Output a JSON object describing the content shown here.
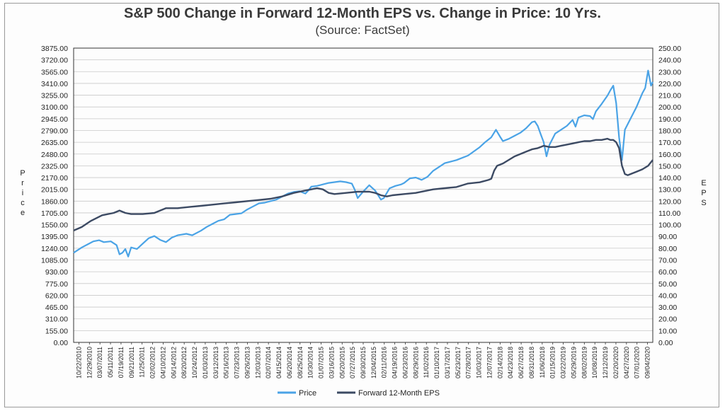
{
  "chart_data": {
    "type": "line",
    "title": "S&P 500 Change in Forward 12-Month EPS vs. Change in Price: 10 Yrs.",
    "subtitle": "(Source: FactSet)",
    "ylabel_left": "Price",
    "ylabel_right": "EPS",
    "ylim_left": [
      0,
      3875
    ],
    "ylim_right": [
      0,
      250
    ],
    "yticks_left": [
      "0.00",
      "155.00",
      "310.00",
      "465.00",
      "620.00",
      "775.00",
      "930.00",
      "1085.00",
      "1240.00",
      "1395.00",
      "1550.00",
      "1705.00",
      "1860.00",
      "2015.00",
      "2170.00",
      "2325.00",
      "2480.00",
      "2635.00",
      "2790.00",
      "2945.00",
      "3100.00",
      "3255.00",
      "3410.00",
      "3565.00",
      "3720.00",
      "3875.00"
    ],
    "yticks_right": [
      "0.00",
      "10.00",
      "20.00",
      "30.00",
      "40.00",
      "50.00",
      "60.00",
      "70.00",
      "80.00",
      "90.00",
      "100.00",
      "110.00",
      "120.00",
      "130.00",
      "140.00",
      "150.00",
      "160.00",
      "170.00",
      "180.00",
      "190.00",
      "200.00",
      "210.00",
      "220.00",
      "230.00",
      "240.00",
      "250.00"
    ],
    "x_tick_labels": [
      "10/22/2010",
      "12/29/2010",
      "03/07/2011",
      "05/11/2011",
      "07/19/2011",
      "09/21/2011",
      "11/25/2011",
      "02/02/2012",
      "04/10/2012",
      "06/14/2012",
      "08/20/2012",
      "10/24/2012",
      "01/03/2013",
      "03/12/2013",
      "05/16/2013",
      "07/23/2013",
      "09/26/2013",
      "12/03/2013",
      "02/07/2014",
      "04/15/2014",
      "06/20/2014",
      "08/25/2014",
      "10/30/2014",
      "01/07/2015",
      "03/16/2015",
      "05/20/2015",
      "07/27/2015",
      "09/30/2015",
      "12/04/2015",
      "02/11/2016",
      "04/19/2016",
      "06/23/2016",
      "08/29/2016",
      "11/02/2016",
      "01/10/2017",
      "03/17/2017",
      "05/23/2017",
      "07/28/2017",
      "10/03/2017",
      "12/07/2017",
      "02/14/2018",
      "04/23/2018",
      "06/27/2018",
      "08/31/2018",
      "11/06/2018",
      "01/15/2019",
      "03/22/2019",
      "05/29/2019",
      "08/02/2019",
      "10/08/2019",
      "12/12/2019",
      "02/20/2020",
      "04/27/2020",
      "07/01/2020",
      "09/04/2020"
    ],
    "series": [
      {
        "name": "Price",
        "axis": "left",
        "color": "#4aa3e6",
        "x": [
          2010.81,
          2010.95,
          2011.05,
          2011.15,
          2011.25,
          2011.33,
          2011.45,
          2011.55,
          2011.6,
          2011.65,
          2011.7,
          2011.75,
          2011.8,
          2011.9,
          2012.0,
          2012.1,
          2012.2,
          2012.3,
          2012.4,
          2012.5,
          2012.6,
          2012.75,
          2012.85,
          2013.0,
          2013.1,
          2013.2,
          2013.3,
          2013.4,
          2013.5,
          2013.6,
          2013.7,
          2013.8,
          2013.9,
          2014.0,
          2014.1,
          2014.2,
          2014.3,
          2014.4,
          2014.5,
          2014.6,
          2014.7,
          2014.8,
          2014.85,
          2014.9,
          2015.0,
          2015.1,
          2015.2,
          2015.3,
          2015.4,
          2015.5,
          2015.6,
          2015.65,
          2015.7,
          2015.8,
          2015.9,
          2016.0,
          2016.1,
          2016.15,
          2016.25,
          2016.35,
          2016.45,
          2016.5,
          2016.6,
          2016.7,
          2016.8,
          2016.9,
          2017.0,
          2017.2,
          2017.4,
          2017.6,
          2017.8,
          2017.9,
          2018.0,
          2018.08,
          2018.15,
          2018.2,
          2018.3,
          2018.4,
          2018.5,
          2018.6,
          2018.7,
          2018.75,
          2018.8,
          2018.85,
          2018.9,
          2018.95,
          2019.0,
          2019.1,
          2019.2,
          2019.3,
          2019.4,
          2019.45,
          2019.5,
          2019.6,
          2019.7,
          2019.75,
          2019.8,
          2019.9,
          2020.0,
          2020.05,
          2020.1,
          2020.15,
          2020.2,
          2020.25,
          2020.3,
          2020.4,
          2020.5,
          2020.6,
          2020.65,
          2020.7,
          2020.75,
          2020.78
        ],
        "values": [
          1180,
          1250,
          1290,
          1330,
          1345,
          1320,
          1330,
          1280,
          1160,
          1180,
          1230,
          1130,
          1250,
          1230,
          1300,
          1370,
          1400,
          1350,
          1320,
          1380,
          1410,
          1430,
          1410,
          1470,
          1520,
          1560,
          1600,
          1620,
          1680,
          1690,
          1700,
          1750,
          1790,
          1830,
          1840,
          1860,
          1880,
          1920,
          1960,
          1980,
          1990,
          1960,
          2000,
          2050,
          2060,
          2080,
          2100,
          2110,
          2120,
          2110,
          2090,
          2010,
          1900,
          1990,
          2070,
          2000,
          1880,
          1900,
          2030,
          2060,
          2080,
          2100,
          2160,
          2170,
          2140,
          2180,
          2260,
          2360,
          2400,
          2460,
          2570,
          2640,
          2700,
          2800,
          2710,
          2650,
          2680,
          2720,
          2760,
          2820,
          2900,
          2910,
          2850,
          2740,
          2640,
          2450,
          2600,
          2750,
          2800,
          2850,
          2930,
          2840,
          2960,
          2990,
          2980,
          2940,
          3040,
          3140,
          3250,
          3320,
          3380,
          3150,
          2700,
          2400,
          2800,
          2950,
          3100,
          3280,
          3350,
          3580,
          3380,
          3430
        ]
      },
      {
        "name": "Forward 12-Month EPS",
        "axis": "right",
        "color": "#3c4a63",
        "x": [
          2010.81,
          2010.95,
          2011.1,
          2011.3,
          2011.5,
          2011.6,
          2011.7,
          2011.8,
          2012.0,
          2012.2,
          2012.3,
          2012.4,
          2012.6,
          2012.8,
          2013.0,
          2013.2,
          2013.4,
          2013.6,
          2013.8,
          2014.0,
          2014.2,
          2014.4,
          2014.6,
          2014.8,
          2014.9,
          2015.0,
          2015.1,
          2015.2,
          2015.3,
          2015.5,
          2015.7,
          2015.9,
          2016.0,
          2016.05,
          2016.1,
          2016.2,
          2016.3,
          2016.5,
          2016.7,
          2016.9,
          2017.0,
          2017.2,
          2017.4,
          2017.6,
          2017.8,
          2017.95,
          2018.0,
          2018.05,
          2018.1,
          2018.2,
          2018.3,
          2018.4,
          2018.5,
          2018.6,
          2018.7,
          2018.8,
          2018.85,
          2018.9,
          2019.0,
          2019.1,
          2019.2,
          2019.3,
          2019.4,
          2019.5,
          2019.6,
          2019.7,
          2019.8,
          2019.9,
          2020.0,
          2020.05,
          2020.1,
          2020.15,
          2020.2,
          2020.25,
          2020.3,
          2020.35,
          2020.4,
          2020.5,
          2020.6,
          2020.7,
          2020.78
        ],
        "values": [
          95,
          98,
          103,
          108,
          110,
          112,
          110,
          109,
          109,
          110,
          112,
          114,
          114,
          115,
          116,
          117,
          118,
          119,
          120,
          121,
          122,
          124,
          127,
          129,
          130,
          131,
          130,
          127,
          126,
          127,
          128,
          128,
          127,
          126,
          125,
          124,
          125,
          126,
          127,
          129,
          130,
          131,
          132,
          135,
          136,
          138,
          139,
          146,
          150,
          152,
          155,
          158,
          160,
          162,
          164,
          165,
          166,
          167,
          166,
          166,
          167,
          168,
          169,
          170,
          171,
          171,
          172,
          172,
          173,
          172,
          172,
          170,
          165,
          150,
          143,
          142,
          143,
          145,
          147,
          150,
          155
        ]
      }
    ],
    "legend": {
      "position": "bottom",
      "entries": [
        "Price",
        "Forward 12-Month EPS"
      ]
    },
    "grid": true
  }
}
